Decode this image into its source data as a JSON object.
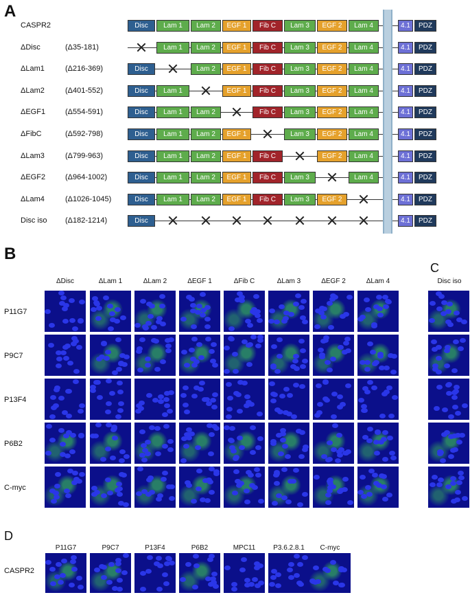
{
  "panels": {
    "a": "A",
    "b": "B",
    "c": "C",
    "d": "D"
  },
  "panel_a": {
    "rows": [
      {
        "name": "CASPR2",
        "range": ""
      },
      {
        "name": "ΔDisc",
        "range": "(Δ35-181)"
      },
      {
        "name": "ΔLam1",
        "range": "(Δ216-369)"
      },
      {
        "name": "ΔLam2",
        "range": "(Δ401-552)"
      },
      {
        "name": "ΔEGF1",
        "range": "(Δ554-591)"
      },
      {
        "name": "ΔFibC",
        "range": "(Δ592-798)"
      },
      {
        "name": "ΔLam3",
        "range": "(Δ799-963)"
      },
      {
        "name": "ΔEGF2",
        "range": "(Δ964-1002)"
      },
      {
        "name": "ΔLam4",
        "range": "(Δ1026-1045)"
      },
      {
        "name": "Disc iso",
        "range": "(Δ182-1214)"
      }
    ],
    "domain_labels": {
      "disc": "Disc",
      "lam1": "Lam 1",
      "lam2": "Lam 2",
      "egf1": "EGF 1",
      "fibc": "Fib C",
      "lam3": "Lam 3",
      "egf2": "EGF 2",
      "lam4": "Lam 4",
      "p41": "4.1",
      "pdz": "PDZ"
    },
    "domain_colors": {
      "disc": "#2e5f90",
      "lam": "#5eac4c",
      "egf": "#e5a12c",
      "fib": "#a1242a",
      "p41": "#6d70d6",
      "pdz": "#203a5c"
    }
  },
  "panel_b": {
    "columns": [
      "ΔDisc",
      "ΔLam 1",
      "ΔLam 2",
      "ΔEGF 1",
      "ΔFib C",
      "ΔLam 3",
      "ΔEGF 2",
      "ΔLam 4"
    ],
    "rows": [
      "P11G7",
      "P9C7",
      "P13F4",
      "P6B2",
      "C-myc"
    ]
  },
  "panel_c": {
    "columns": [
      "Disc iso"
    ]
  },
  "panel_d": {
    "columns": [
      "P11G7",
      "P9C7",
      "P13F4",
      "P6B2",
      "MPC11",
      "P3.6.2.8.1",
      "C-myc"
    ],
    "rows": [
      "CASPR2"
    ]
  },
  "image_colors": {
    "nuclei": "#2a36e8",
    "background": "#0b0f8a",
    "stain": "#3cc850"
  }
}
